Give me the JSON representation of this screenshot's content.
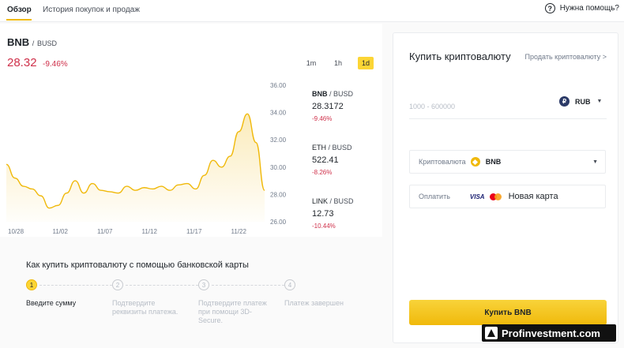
{
  "tabs": [
    {
      "label": "Обзор",
      "active": true
    },
    {
      "label": "История покупок и продаж",
      "active": false
    }
  ],
  "help": {
    "icon": "question-circle-icon",
    "label": "Нужна помощь?"
  },
  "market": {
    "base": "BNB",
    "quote": "BUSD",
    "separator": "/",
    "price": "28.32",
    "change": "-9.46%",
    "intervals": [
      {
        "label": "1m",
        "active": false
      },
      {
        "label": "1h",
        "active": false
      },
      {
        "label": "1d",
        "active": true
      }
    ]
  },
  "chart_data": {
    "type": "line",
    "x_ticks": [
      "10/28",
      "11/02",
      "11/07",
      "11/12",
      "11/17",
      "11/22"
    ],
    "y_ticks": [
      "26.00",
      "28.00",
      "30.00",
      "32.00",
      "34.00",
      "36.00"
    ],
    "ylim": [
      26,
      36
    ],
    "xlim": [
      0,
      30
    ],
    "grid": false,
    "series": [
      {
        "color": "#f0b90b",
        "x": [
          0,
          1,
          2,
          3,
          4,
          5,
          6,
          7,
          8,
          9,
          10,
          11,
          12,
          13,
          14,
          15,
          16,
          17,
          18,
          19,
          20,
          21,
          22,
          23,
          24,
          25,
          26,
          27,
          28,
          29,
          30
        ],
        "y": [
          30.2,
          29.2,
          28.6,
          28.4,
          27.9,
          27.0,
          27.2,
          28.1,
          29.0,
          28.1,
          28.8,
          28.3,
          28.2,
          28.1,
          28.6,
          28.3,
          28.5,
          28.4,
          28.6,
          28.3,
          28.7,
          28.8,
          28.4,
          29.4,
          30.5,
          30.0,
          30.8,
          32.6,
          33.9,
          31.8,
          28.3
        ]
      }
    ]
  },
  "tickers": [
    {
      "base": "BNB",
      "quote": "/ BUSD",
      "price": "28.3172",
      "change": "-9.46%"
    },
    {
      "base": "ETH",
      "quote": "/ BUSD",
      "price": "522.41",
      "change": "-8.26%"
    },
    {
      "base": "LINK",
      "quote": "/ BUSD",
      "price": "12.73",
      "change": "-10.44%"
    }
  ],
  "steps": {
    "title": "Как купить криптовалюту с помощью банковской карты",
    "items": [
      {
        "num": "1",
        "label": "Введите сумму",
        "active": true
      },
      {
        "num": "2",
        "label": "Подтвердите реквизиты платежа.",
        "active": false
      },
      {
        "num": "3",
        "label": "Подтвердите платеж при помощи 3D-Secure.",
        "active": false
      },
      {
        "num": "4",
        "label": "Платеж завершен",
        "active": false
      }
    ]
  },
  "form": {
    "title": "Купить криптовалюту",
    "sell_link": "Продать криптовалюту >",
    "amount_placeholder": "1000 - 600000",
    "fiat": {
      "code": "RUB",
      "symbol": "₽",
      "icon": "ruble-icon"
    },
    "crypto_label": "Криптовалюта",
    "crypto": {
      "code": "BNB",
      "icon": "bnb-icon",
      "color": "#f0b90b"
    },
    "pay_label": "Оплатить",
    "visa_label": "VISA",
    "card_label": "Новая карта",
    "buy_label": "Купить BNB"
  },
  "watermark": {
    "text": "Profinvestment.com"
  },
  "colors": {
    "accent": "#f0b90b",
    "negative": "#cf304a"
  }
}
